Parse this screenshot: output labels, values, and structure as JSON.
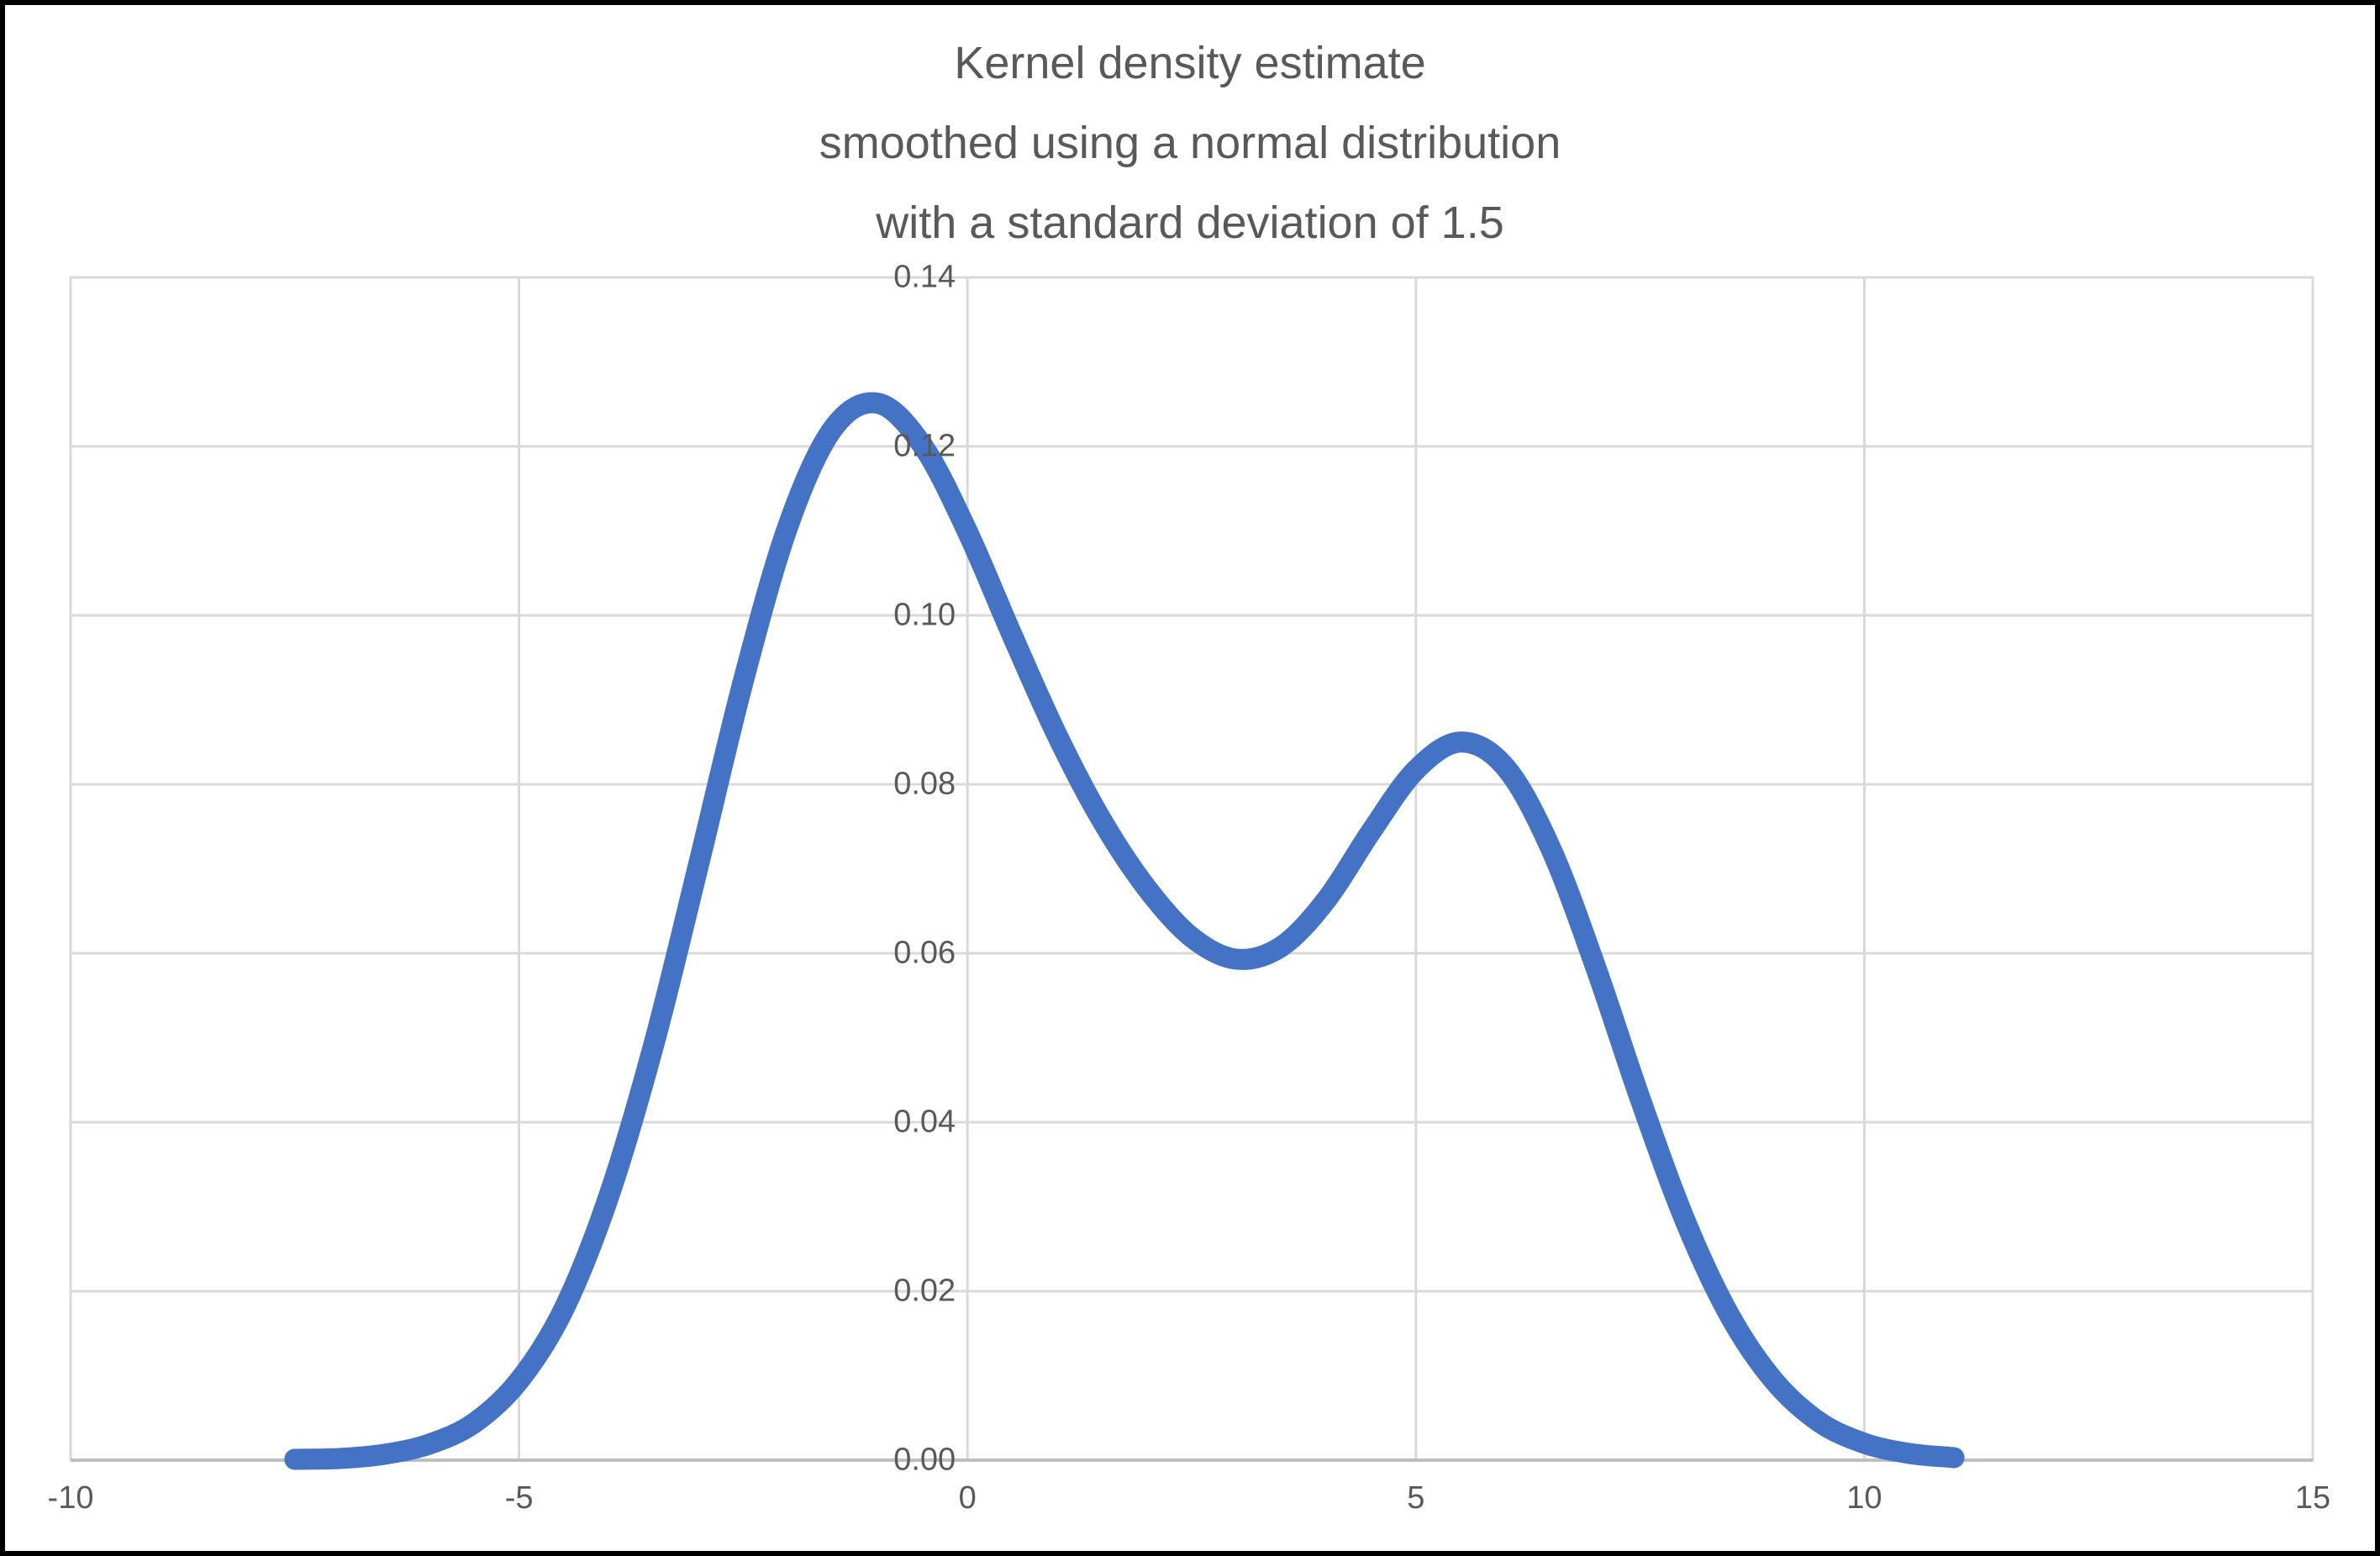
{
  "frame": {
    "background": "#FFFFFF",
    "border_color": "#000000"
  },
  "title": {
    "lines": [
      "Kernel density estimate",
      "smoothed using a normal distribution",
      "with a standard deviation of 1.5"
    ],
    "color": "#595959"
  },
  "chart_data": {
    "type": "line",
    "title": "Kernel density estimate smoothed using a normal distribution with a standard deviation of 1.5",
    "xlabel": "",
    "ylabel": "",
    "xlim": [
      -10,
      15
    ],
    "ylim": [
      0,
      0.14
    ],
    "grid": true,
    "legend": false,
    "x_ticks": {
      "values": [
        -10,
        -5,
        0,
        5,
        10,
        15
      ],
      "labels": [
        "-10",
        "-5",
        "0",
        "5",
        "10",
        "15"
      ]
    },
    "y_ticks": {
      "values": [
        0,
        0.02,
        0.04,
        0.06,
        0.08,
        0.1,
        0.12,
        0.14
      ],
      "labels": [
        "0.00",
        "0.02",
        "0.04",
        "0.06",
        "0.08",
        "0.10",
        "0.12",
        "0.14"
      ]
    },
    "series": [
      {
        "name": "kernel-density-estimate",
        "color": "#4472C4",
        "stroke_width": 25,
        "x": [
          -7.5,
          -7,
          -6.5,
          -6,
          -5.5,
          -5,
          -4.5,
          -4,
          -3.5,
          -3,
          -2.5,
          -2,
          -1.5,
          -1,
          -0.5,
          0,
          0.5,
          1,
          1.5,
          2,
          2.5,
          3,
          3.5,
          4,
          4.5,
          5,
          5.5,
          6,
          6.5,
          7,
          7.5,
          8,
          8.5,
          9,
          9.5,
          10,
          10.5,
          11
        ],
        "y": [
          0.0001,
          0.0002,
          0.0007,
          0.0019,
          0.0044,
          0.0094,
          0.0179,
          0.0312,
          0.0491,
          0.0704,
          0.0922,
          0.1106,
          0.1221,
          0.1251,
          0.1201,
          0.1099,
          0.0976,
          0.0858,
          0.0757,
          0.0677,
          0.0619,
          0.0593,
          0.0608,
          0.0663,
          0.0744,
          0.0817,
          0.085,
          0.082,
          0.0725,
          0.0585,
          0.0428,
          0.0284,
          0.0171,
          0.0093,
          0.0045,
          0.002,
          0.0008,
          0.0003
        ],
        "annotations": {
          "first_peak": {
            "x": -1,
            "y": 0.125
          },
          "valley": {
            "x": 3,
            "y": 0.059
          },
          "second_peak": {
            "x": 5.5,
            "y": 0.085
          }
        }
      }
    ],
    "styles": {
      "gridline_color": "#D9D9D9",
      "axis_line_color": "#BFBFBF",
      "tick_label_color": "#595959",
      "plot_background": "#FFFFFF"
    }
  }
}
